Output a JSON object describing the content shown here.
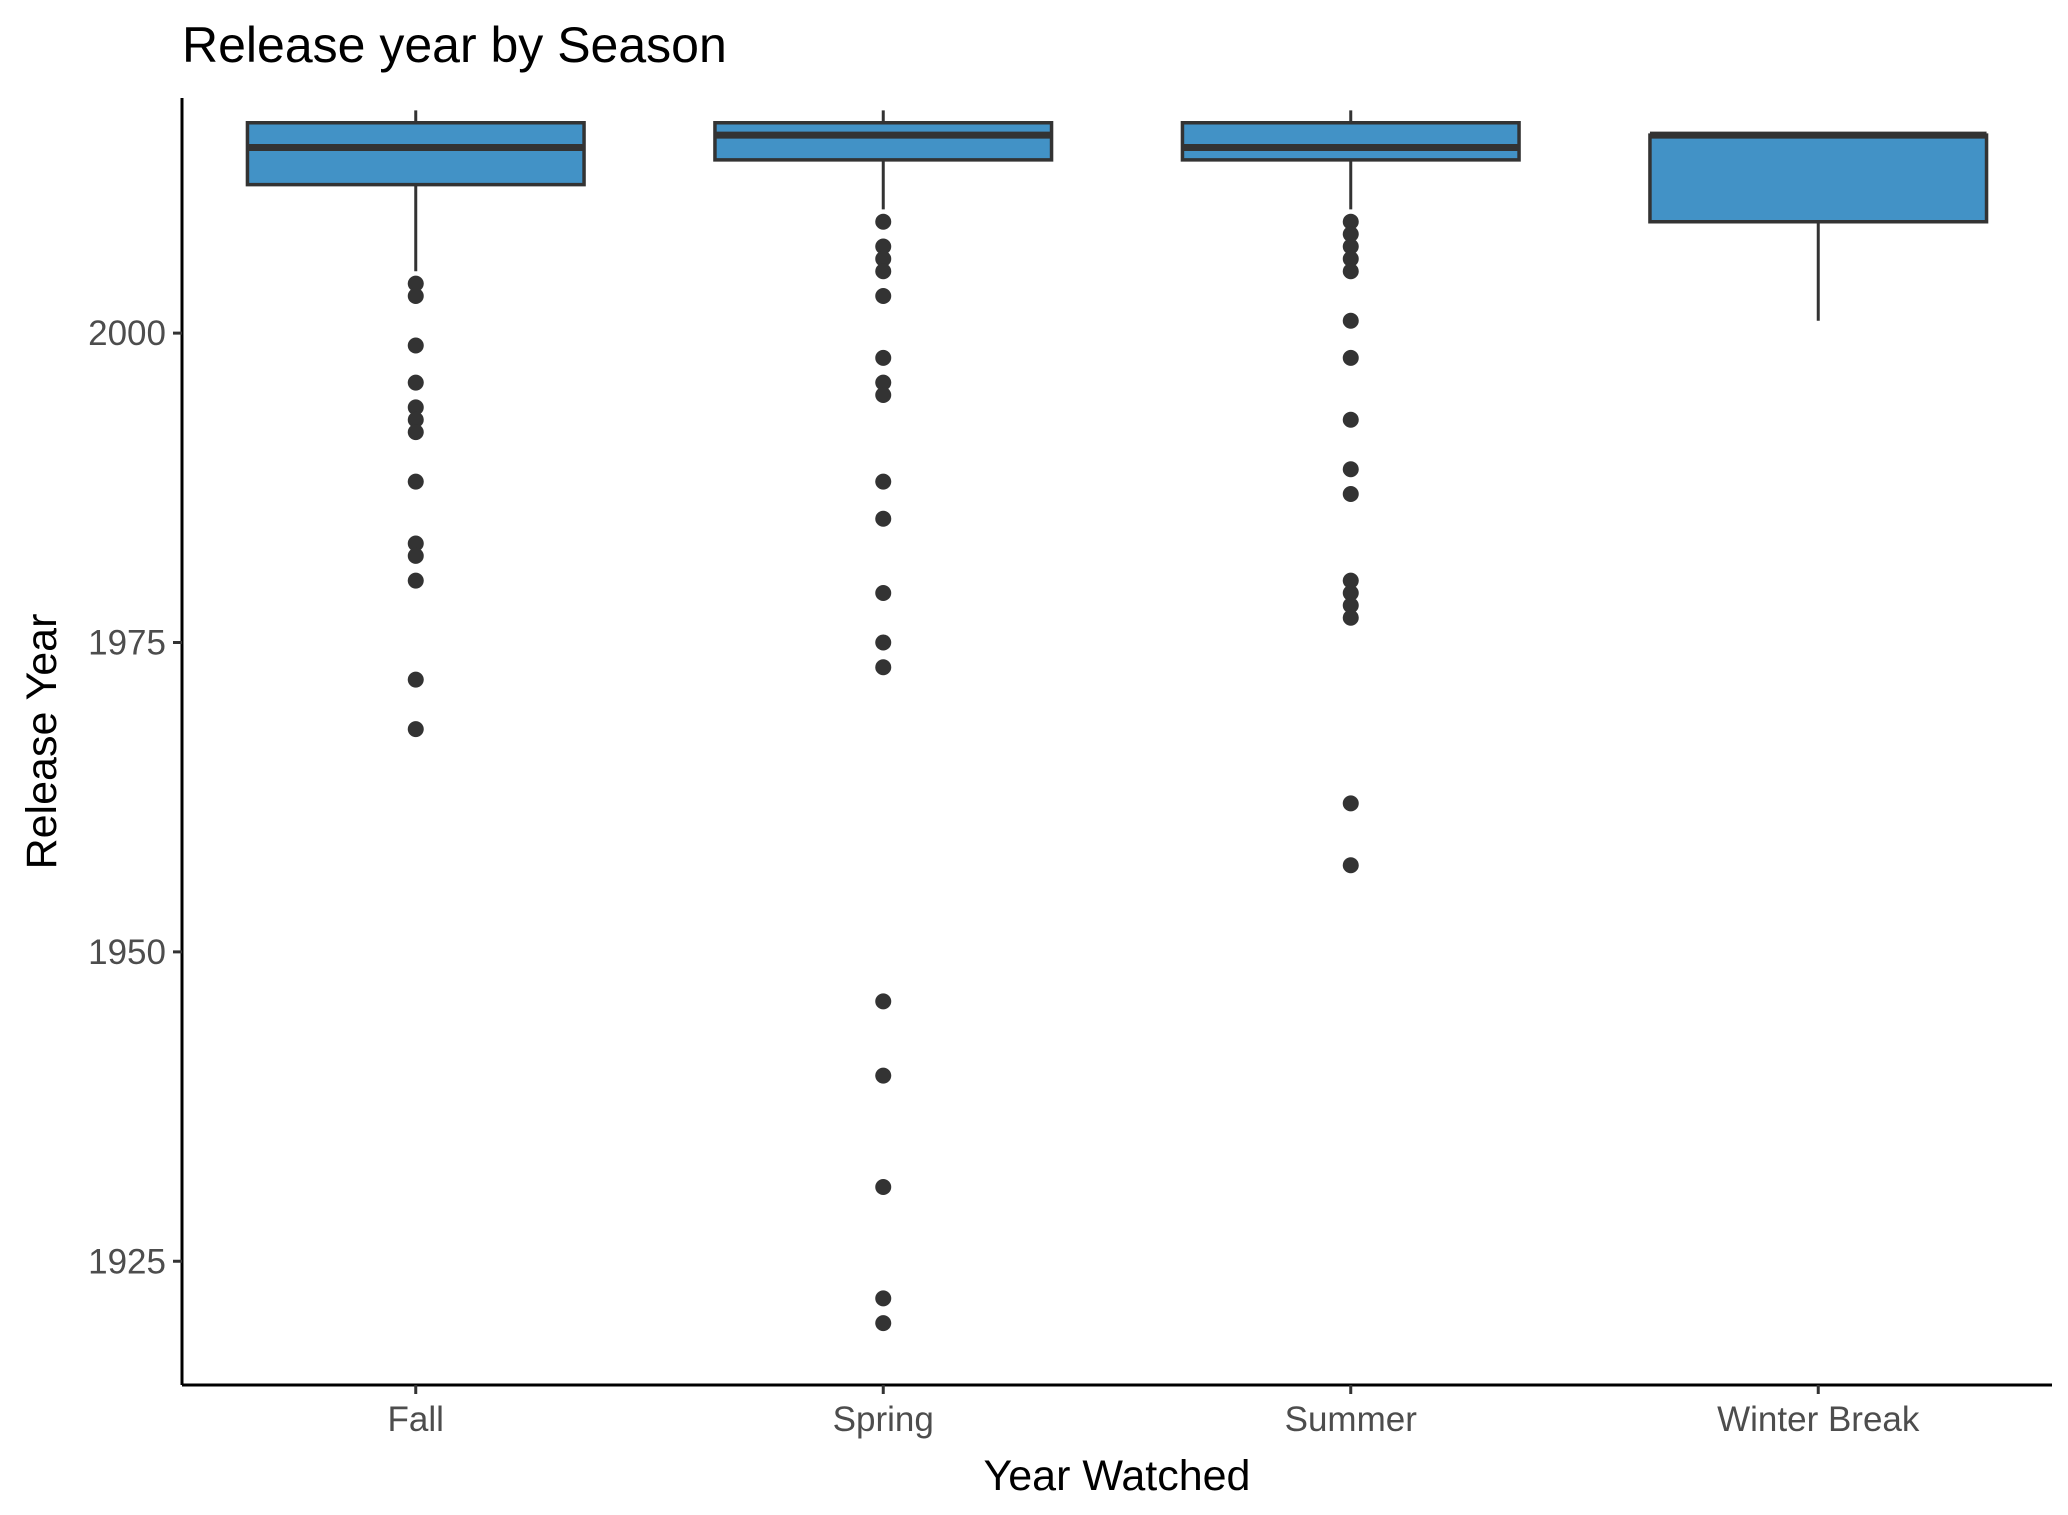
{
  "chart_data": {
    "type": "boxplot",
    "title": "Release year by Season",
    "xlabel": "Year Watched",
    "ylabel": "Release Year",
    "ylim": [
      1915,
      2019
    ],
    "yticks": [
      1925,
      1950,
      1975,
      2000
    ],
    "categories": [
      "Fall",
      "Spring",
      "Summer",
      "Winter Break"
    ],
    "box_fill": "#4292c6",
    "line_color": "#333333",
    "grid": false,
    "boxes": [
      {
        "category": "Fall",
        "whisker_low": 2005,
        "q1": 2012,
        "median": 2015,
        "q3": 2017,
        "whisker_high": 2018,
        "outliers": [
          2004,
          2003,
          1999,
          1996,
          1994,
          1993,
          1992,
          1988,
          1983,
          1982,
          1980,
          1972,
          1968
        ]
      },
      {
        "category": "Spring",
        "whisker_low": 2010,
        "q1": 2014,
        "median": 2016,
        "q3": 2017,
        "whisker_high": 2018,
        "outliers": [
          2009,
          2007,
          2006,
          2005,
          2003,
          1998,
          1996,
          1995,
          1988,
          1985,
          1979,
          1975,
          1973,
          1946,
          1940,
          1931,
          1922,
          1920
        ]
      },
      {
        "category": "Summer",
        "whisker_low": 2010,
        "q1": 2014,
        "median": 2015,
        "q3": 2017,
        "whisker_high": 2018,
        "outliers": [
          2009,
          2008,
          2007,
          2006,
          2005,
          2001,
          1998,
          1993,
          1989,
          1987,
          1980,
          1979,
          1978,
          1977,
          1962,
          1957
        ]
      },
      {
        "category": "Winter Break",
        "whisker_low": 2001,
        "q1": 2009,
        "median": 2016,
        "q3": 2016,
        "whisker_high": 2016,
        "outliers": []
      }
    ]
  }
}
